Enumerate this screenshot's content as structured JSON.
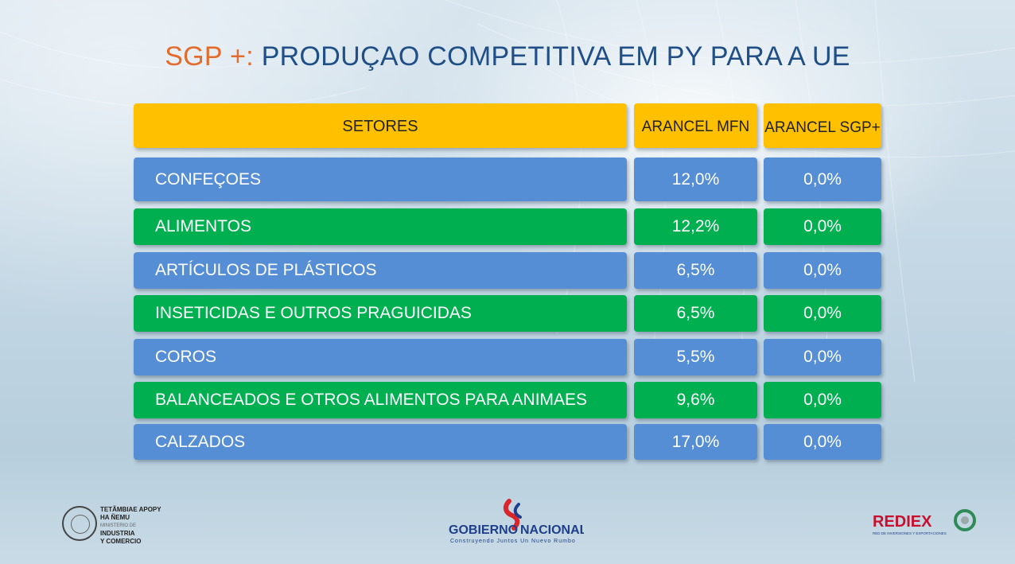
{
  "title": {
    "accent": "SGP +:",
    "main": " PRODUÇAO COMPETITIVA EM PY PARA A UE"
  },
  "table": {
    "headers": {
      "sector": "SETORES",
      "mfn": "ARANCEL MFN",
      "sgp": "ARANCEL SGP+"
    },
    "rows": [
      {
        "sector": "CONFEÇOES",
        "mfn": "12,0%",
        "sgp": "0,0%",
        "color": "#558ed5"
      },
      {
        "sector": "ALIMENTOS",
        "mfn": "12,2%",
        "sgp": "0,0%",
        "color": "#00b050"
      },
      {
        "sector": "ARTÍCULOS DE PLÁSTICOS",
        "mfn": "6,5%",
        "sgp": "0,0%",
        "color": "#558ed5"
      },
      {
        "sector": "INSETICIDAS E OUTROS PRAGUICIDAS",
        "mfn": "6,5%",
        "sgp": "0,0%",
        "color": "#00b050"
      },
      {
        "sector": "COROS",
        "mfn": "5,5%",
        "sgp": "0,0%",
        "color": "#558ed5"
      },
      {
        "sector": "BALANCEADOS E OTROS ALIMENTOS PARA ANIMAES",
        "mfn": "9,6%",
        "sgp": "0,0%",
        "color": "#00b050"
      },
      {
        "sector": "CALZADOS",
        "mfn": "17,0%",
        "sgp": "0,0%",
        "color": "#558ed5"
      }
    ]
  },
  "footer": {
    "ministry": {
      "line1": "TETÃMBIAE APOPY",
      "line2": "HA ÑEMU",
      "line3": "MINISTERIO DE",
      "line4": "INDUSTRIA",
      "line5": "Y COMERCIO"
    },
    "gobierno": {
      "left": "GOBIERNO",
      "right": "NACIONAL",
      "tagline": "Construyendo Juntos Un Nuevo Rumbo"
    },
    "rediex": {
      "brand": "REDIEX",
      "tagline": "RED DE INVERSIONES Y EXPORTACIONES"
    }
  },
  "colors": {
    "header": "#ffc000",
    "blue_row": "#558ed5",
    "green_row": "#00b050",
    "title_accent": "#e36c2c",
    "title_main": "#1f4f86"
  }
}
